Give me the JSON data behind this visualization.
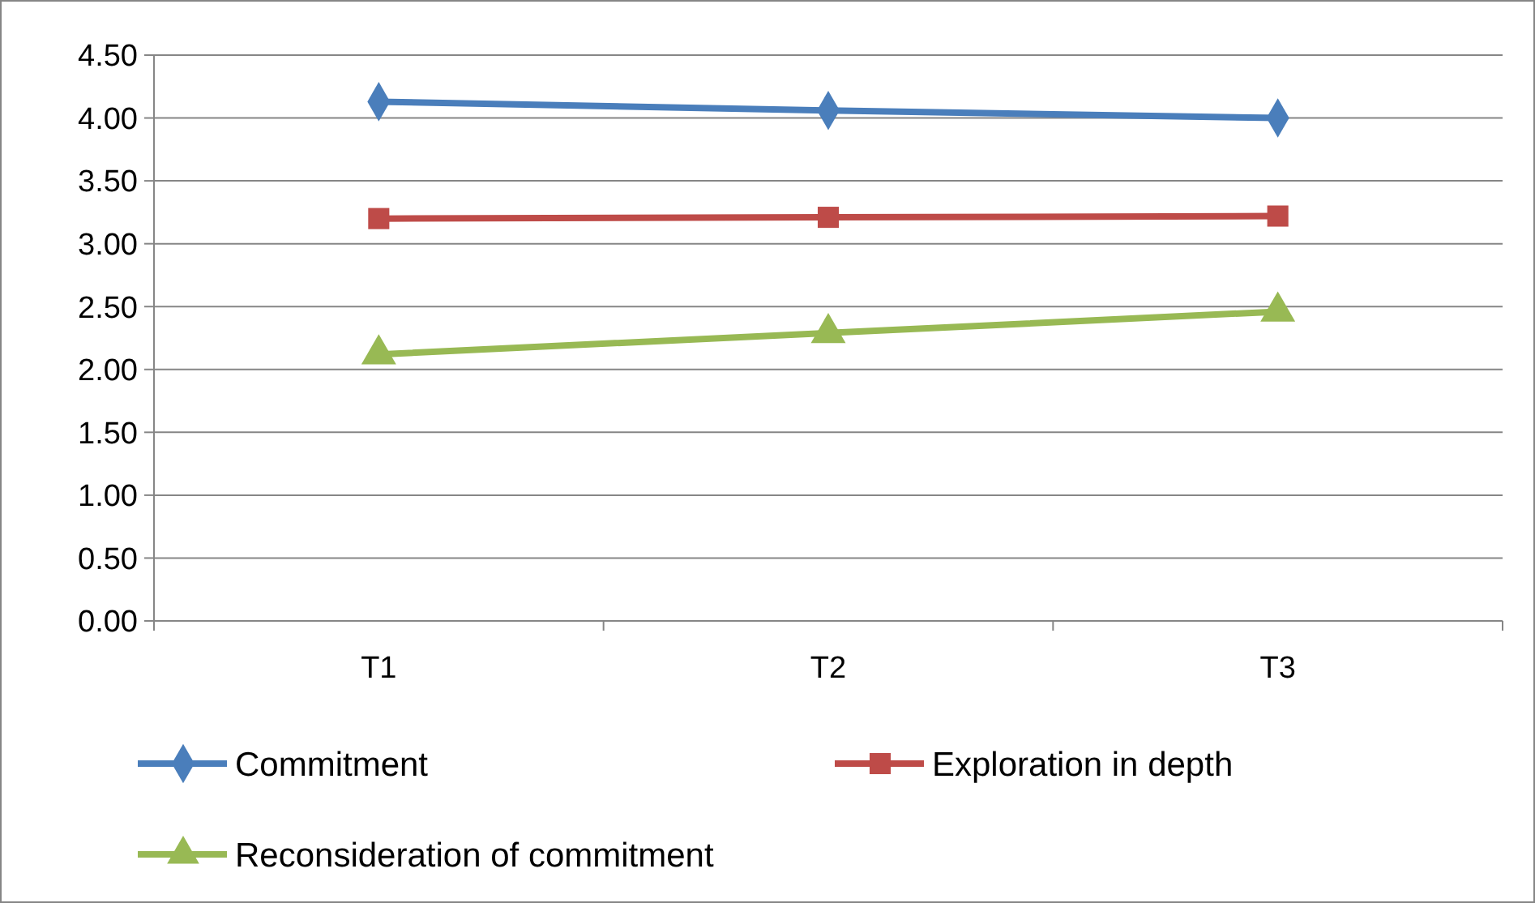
{
  "chart_data": {
    "type": "line",
    "categories": [
      "T1",
      "T2",
      "T3"
    ],
    "series": [
      {
        "name": "Commitment",
        "color": "#4a7ebb",
        "marker": "diamond",
        "values": [
          4.13,
          4.06,
          4.0
        ]
      },
      {
        "name": "Exploration in depth",
        "color": "#be4b48",
        "marker": "square",
        "values": [
          3.2,
          3.21,
          3.22
        ]
      },
      {
        "name": "Reconsideration of commitment",
        "color": "#98b954",
        "marker": "triangle",
        "values": [
          2.12,
          2.29,
          2.46
        ]
      }
    ],
    "ylim": [
      0,
      4.5
    ],
    "yticks": [
      {
        "value": 0,
        "label": "0.00"
      },
      {
        "value": 0.5,
        "label": "0.50"
      },
      {
        "value": 1,
        "label": "1.00"
      },
      {
        "value": 1.5,
        "label": "1.50"
      },
      {
        "value": 2,
        "label": "2.00"
      },
      {
        "value": 2.5,
        "label": "2.50"
      },
      {
        "value": 3,
        "label": "3.00"
      },
      {
        "value": 3.5,
        "label": "3.50"
      },
      {
        "value": 4,
        "label": "4.00"
      },
      {
        "value": 4.5,
        "label": "4.50"
      }
    ],
    "grid": "y",
    "legend": "bottom",
    "line_style": "solid"
  }
}
